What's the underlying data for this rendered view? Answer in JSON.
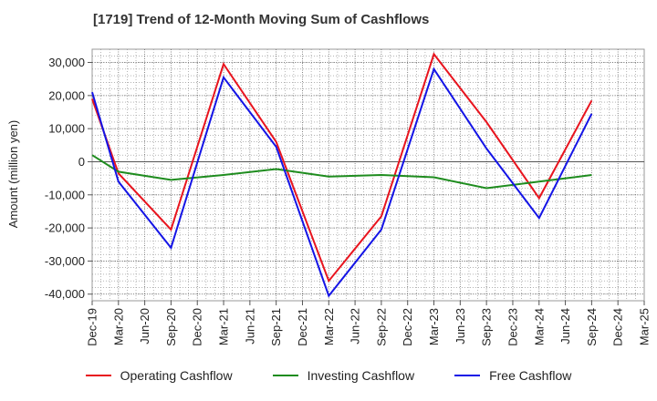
{
  "chart_data": {
    "type": "line",
    "title": "[1719]  Trend of 12-Month Moving Sum of Cashflows",
    "ylabel": "Amount (million yen)",
    "xlabel": "",
    "categories": [
      "Dec-19",
      "Mar-20",
      "Jun-20",
      "Sep-20",
      "Dec-20",
      "Mar-21",
      "Jun-21",
      "Sep-21",
      "Dec-21",
      "Mar-22",
      "Jun-22",
      "Sep-22",
      "Dec-22",
      "Mar-23",
      "Jun-23",
      "Sep-23",
      "Dec-23",
      "Mar-24",
      "Jun-24",
      "Sep-24",
      "Dec-24",
      "Mar-25"
    ],
    "ylim": [
      -42000,
      34000
    ],
    "yticks": [
      30000,
      20000,
      10000,
      0,
      -10000,
      -20000,
      -30000,
      -40000
    ],
    "ytick_labels": [
      "30,000",
      "20,000",
      "10,000",
      "0",
      "-10,000",
      "-20,000",
      "-30,000",
      "-40,000"
    ],
    "grid": true,
    "legend_position": "bottom",
    "series": [
      {
        "name": "Operating Cashflow",
        "color": "#e8141e",
        "points": [
          [
            "Dec-19",
            19000
          ],
          [
            "Mar-20",
            -3500
          ],
          [
            "Sep-20",
            -20500
          ],
          [
            "Mar-21",
            29500
          ],
          [
            "Sep-21",
            6000
          ],
          [
            "Mar-22",
            -36000
          ],
          [
            "Sep-22",
            -16500
          ],
          [
            "Mar-23",
            32500
          ],
          [
            "Sep-23",
            12000
          ],
          [
            "Mar-24",
            -11000
          ],
          [
            "Sep-24",
            18500
          ]
        ]
      },
      {
        "name": "Investing Cashflow",
        "color": "#1e8c1e",
        "points": [
          [
            "Dec-19",
            2000
          ],
          [
            "Mar-20",
            -3000
          ],
          [
            "Sep-20",
            -5500
          ],
          [
            "Mar-21",
            -4000
          ],
          [
            "Sep-21",
            -2200
          ],
          [
            "Mar-22",
            -4500
          ],
          [
            "Sep-22",
            -4000
          ],
          [
            "Mar-23",
            -4700
          ],
          [
            "Sep-23",
            -8000
          ],
          [
            "Mar-24",
            -6000
          ],
          [
            "Sep-24",
            -4000
          ]
        ]
      },
      {
        "name": "Free Cashflow",
        "color": "#1414e6",
        "points": [
          [
            "Dec-19",
            21000
          ],
          [
            "Mar-20",
            -6000
          ],
          [
            "Sep-20",
            -26000
          ],
          [
            "Mar-21",
            25500
          ],
          [
            "Sep-21",
            4500
          ],
          [
            "Mar-22",
            -40500
          ],
          [
            "Sep-22",
            -20500
          ],
          [
            "Mar-23",
            28000
          ],
          [
            "Sep-23",
            4000
          ],
          [
            "Mar-24",
            -17000
          ],
          [
            "Sep-24",
            14500
          ]
        ]
      }
    ]
  }
}
